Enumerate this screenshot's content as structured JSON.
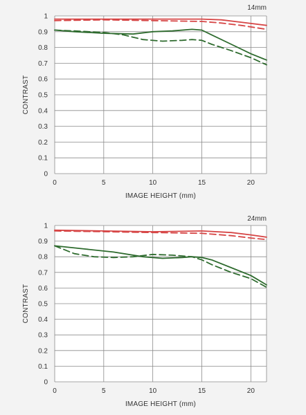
{
  "chart_data": [
    {
      "type": "line",
      "title": "14mm",
      "xlabel": "IMAGE HEIGHT (mm)",
      "ylabel": "CONTRAST",
      "xlim": [
        0,
        21.6
      ],
      "ylim": [
        0,
        1
      ],
      "xticks": [
        0,
        5,
        10,
        15,
        20
      ],
      "yticks": [
        0,
        0.1,
        0.2,
        0.3,
        0.4,
        0.5,
        0.6,
        0.7,
        0.8,
        0.9,
        1
      ],
      "ytick_labels": [
        "0",
        "0.1",
        "0.2",
        "0.3",
        "0.4",
        "0.5",
        "0.6",
        "0.7",
        "0.8",
        "0.9",
        "1"
      ],
      "xtick_labels": [
        "0",
        "5",
        "10",
        "15",
        "20"
      ],
      "grid": true,
      "series": [
        {
          "color": "#d64545",
          "dash": "solid",
          "x": [
            0,
            5,
            10,
            15,
            17,
            19,
            21.6
          ],
          "y": [
            0.98,
            0.98,
            0.98,
            0.98,
            0.975,
            0.96,
            0.94
          ]
        },
        {
          "color": "#d64545",
          "dash": "dashed",
          "x": [
            0,
            5,
            10,
            15,
            17,
            19,
            21.6
          ],
          "y": [
            0.97,
            0.975,
            0.97,
            0.965,
            0.955,
            0.94,
            0.915
          ]
        },
        {
          "color": "#2e6b2e",
          "dash": "solid",
          "x": [
            0,
            2,
            5,
            8,
            10,
            12,
            14,
            15,
            16,
            18,
            20,
            21.6
          ],
          "y": [
            0.91,
            0.9,
            0.89,
            0.885,
            0.9,
            0.905,
            0.915,
            0.91,
            0.88,
            0.82,
            0.76,
            0.72
          ]
        },
        {
          "color": "#2e6b2e",
          "dash": "dashed",
          "x": [
            0,
            2,
            5,
            7,
            9,
            11,
            13,
            14,
            15,
            16,
            18,
            20,
            21.6
          ],
          "y": [
            0.91,
            0.905,
            0.895,
            0.88,
            0.85,
            0.84,
            0.845,
            0.85,
            0.845,
            0.82,
            0.78,
            0.735,
            0.69
          ]
        }
      ]
    },
    {
      "type": "line",
      "title": "24mm",
      "xlabel": "IMAGE HEIGHT (mm)",
      "ylabel": "CONTRAST",
      "xlim": [
        0,
        21.6
      ],
      "ylim": [
        0,
        1
      ],
      "xticks": [
        0,
        5,
        10,
        15,
        20
      ],
      "yticks": [
        0,
        0.1,
        0.2,
        0.3,
        0.4,
        0.5,
        0.6,
        0.7,
        0.8,
        0.9,
        1
      ],
      "ytick_labels": [
        "0",
        "0.1",
        "0.2",
        "0.3",
        "0.4",
        "0.5",
        "0.6",
        "0.7",
        "0.8",
        "0.9",
        "1"
      ],
      "xtick_labels": [
        "0",
        "5",
        "10",
        "15",
        "20"
      ],
      "grid": true,
      "series": [
        {
          "color": "#d64545",
          "dash": "solid",
          "x": [
            0,
            5,
            10,
            15,
            18,
            20,
            21.6
          ],
          "y": [
            0.97,
            0.965,
            0.96,
            0.965,
            0.955,
            0.94,
            0.925
          ]
        },
        {
          "color": "#d64545",
          "dash": "dashed",
          "x": [
            0,
            5,
            10,
            15,
            18,
            20,
            21.6
          ],
          "y": [
            0.965,
            0.96,
            0.955,
            0.95,
            0.935,
            0.92,
            0.91
          ]
        },
        {
          "color": "#2e6b2e",
          "dash": "solid",
          "x": [
            0,
            3,
            6,
            9,
            11,
            13,
            14,
            15,
            16,
            18,
            20,
            21.6
          ],
          "y": [
            0.87,
            0.85,
            0.83,
            0.8,
            0.79,
            0.795,
            0.8,
            0.795,
            0.78,
            0.73,
            0.68,
            0.62
          ]
        },
        {
          "color": "#2e6b2e",
          "dash": "dashed",
          "x": [
            0,
            2,
            4,
            6,
            8,
            10,
            12,
            14,
            15,
            16,
            18,
            20,
            21.6
          ],
          "y": [
            0.87,
            0.82,
            0.8,
            0.795,
            0.8,
            0.815,
            0.81,
            0.8,
            0.78,
            0.75,
            0.7,
            0.66,
            0.605
          ]
        }
      ]
    }
  ]
}
